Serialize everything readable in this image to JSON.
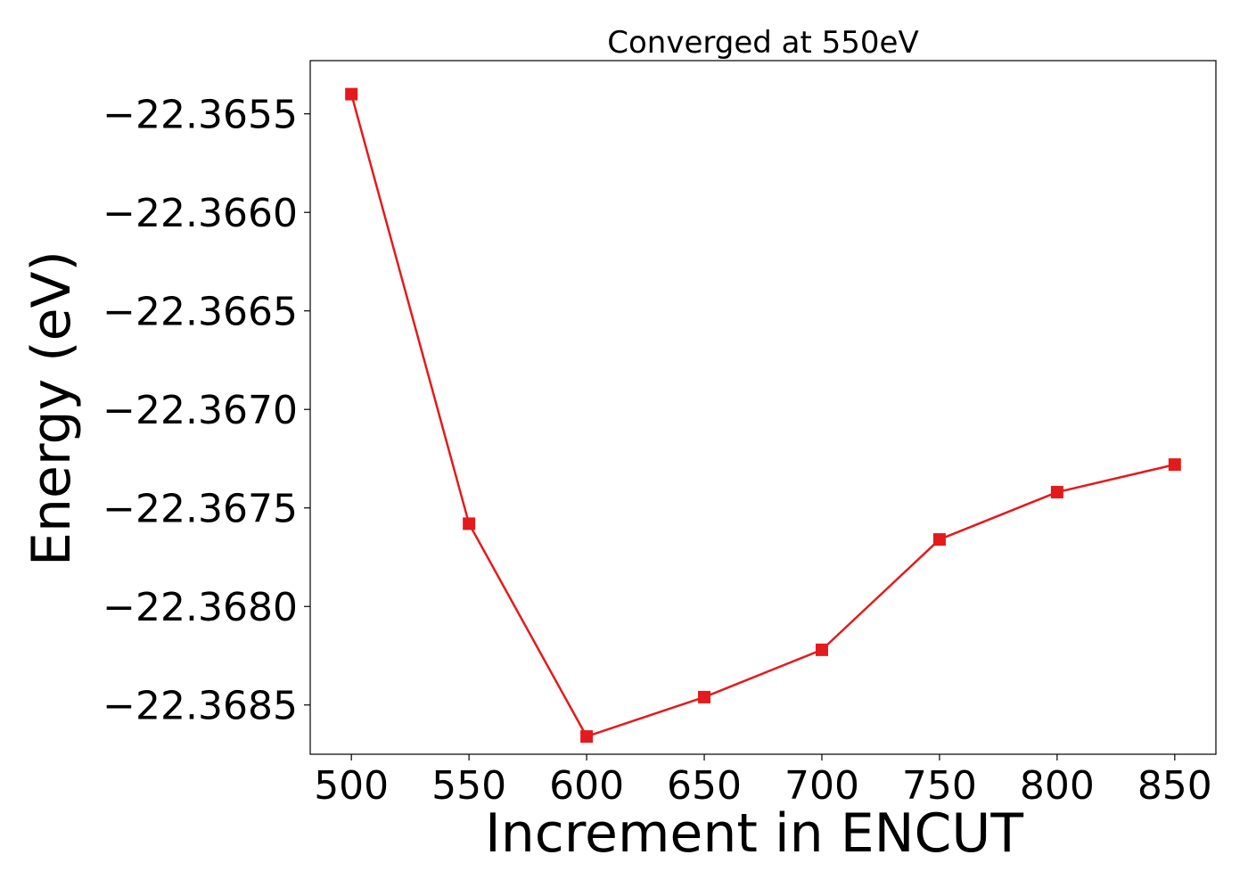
{
  "chart_data": {
    "type": "line",
    "title": "Converged at 550eV",
    "xlabel": "Increment in ENCUT",
    "ylabel": "Energy (eV)",
    "x": [
      500,
      550,
      600,
      650,
      700,
      750,
      800,
      850
    ],
    "series": [
      {
        "values": [
          -22.3654,
          -22.36758,
          -22.36866,
          -22.36846,
          -22.36822,
          -22.36766,
          -22.36742,
          -22.36728
        ],
        "color": "#e41a1c",
        "marker": "square"
      }
    ],
    "xticks": [
      500,
      550,
      600,
      650,
      700,
      750,
      800,
      850
    ],
    "xtick_labels": [
      "500",
      "550",
      "600",
      "650",
      "700",
      "750",
      "800",
      "850"
    ],
    "yticks": [
      -22.3655,
      -22.366,
      -22.3665,
      -22.367,
      -22.3675,
      -22.368,
      -22.3685
    ],
    "ytick_labels": [
      "−22.3655",
      "−22.3660",
      "−22.3665",
      "−22.3670",
      "−22.3675",
      "−22.3680",
      "−22.3685"
    ],
    "xlim": [
      482.5,
      867.5
    ],
    "ylim": [
      -22.36875,
      -22.36523
    ],
    "grid": false,
    "legend": "none"
  }
}
